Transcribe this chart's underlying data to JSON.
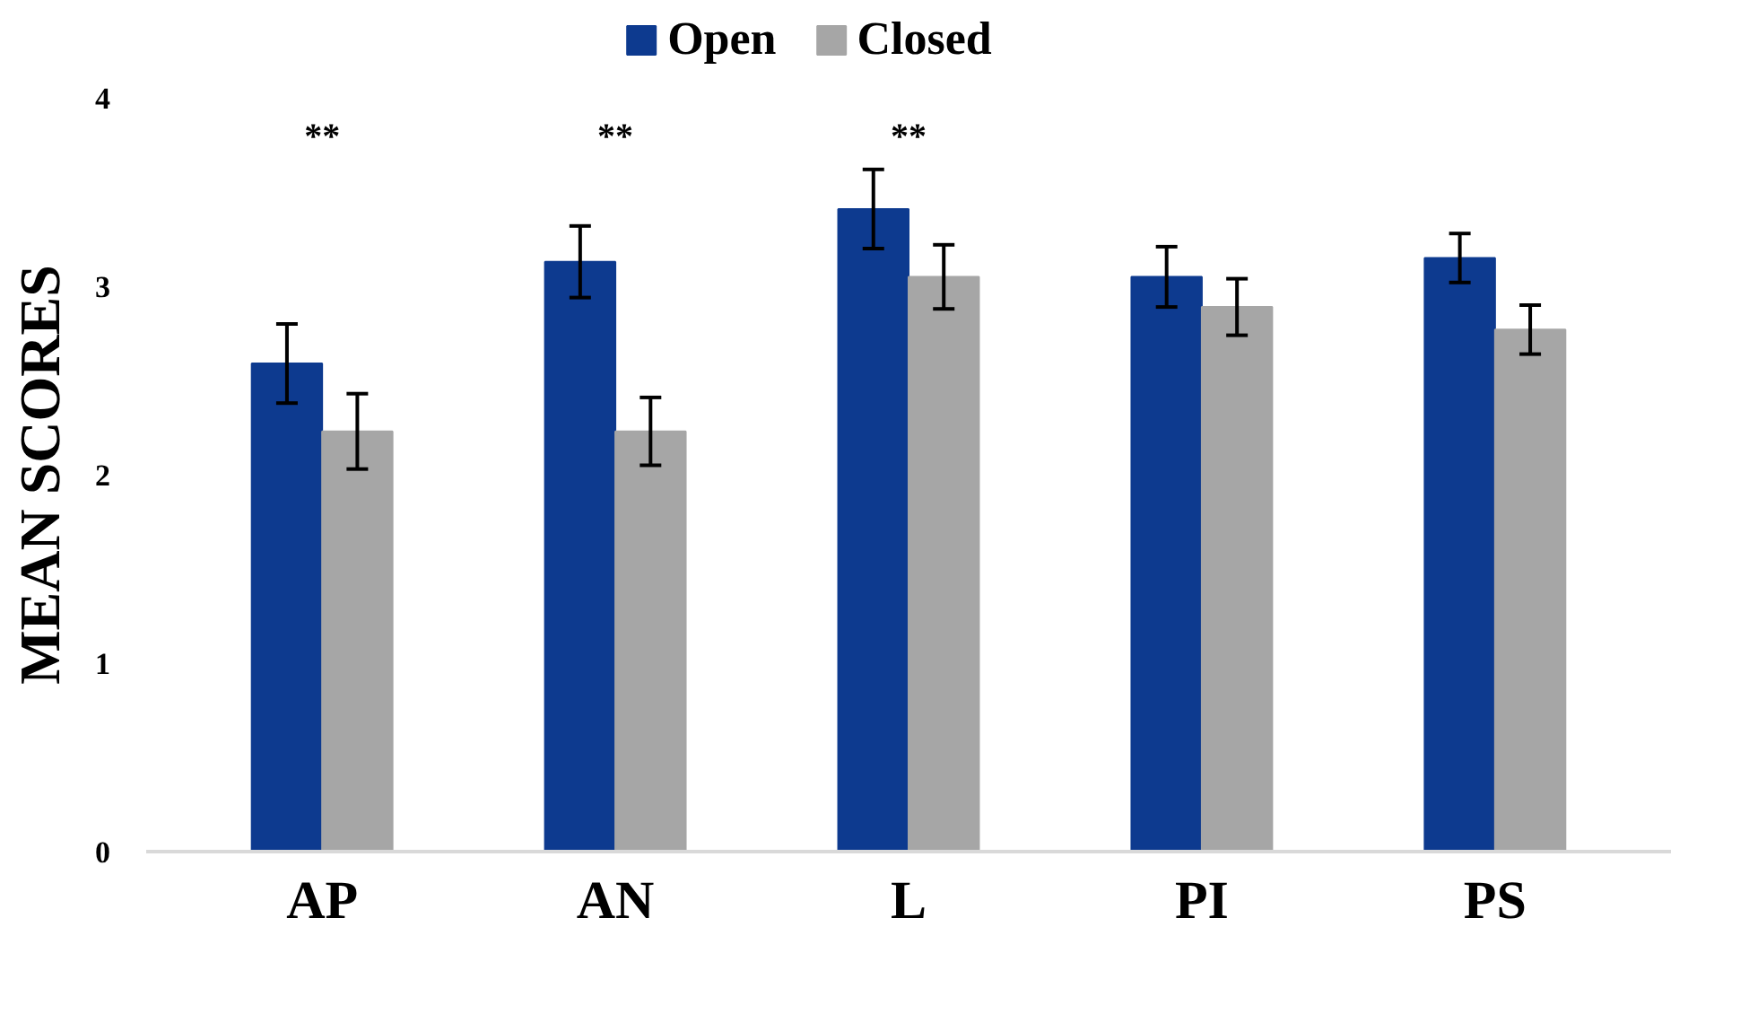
{
  "chart_data": {
    "type": "bar",
    "ylabel": "MEAN SCORES",
    "categories": [
      "AP",
      "AN",
      "L",
      "PI",
      "PS"
    ],
    "series": [
      {
        "name": "Open",
        "color": "#0d3a8f",
        "values": [
          2.59,
          3.13,
          3.41,
          3.05,
          3.15
        ],
        "errors": [
          0.21,
          0.19,
          0.21,
          0.16,
          0.13
        ]
      },
      {
        "name": "Closed",
        "color": "#a6a6a6",
        "values": [
          2.23,
          2.23,
          3.05,
          2.89,
          2.77
        ],
        "errors": [
          0.2,
          0.18,
          0.17,
          0.15,
          0.13
        ]
      }
    ],
    "ylim": [
      0,
      4
    ],
    "yticks": [
      0,
      1,
      2,
      3,
      4
    ],
    "grid": false,
    "legend": "top",
    "annotations": [
      "**",
      "**",
      "**"
    ]
  }
}
